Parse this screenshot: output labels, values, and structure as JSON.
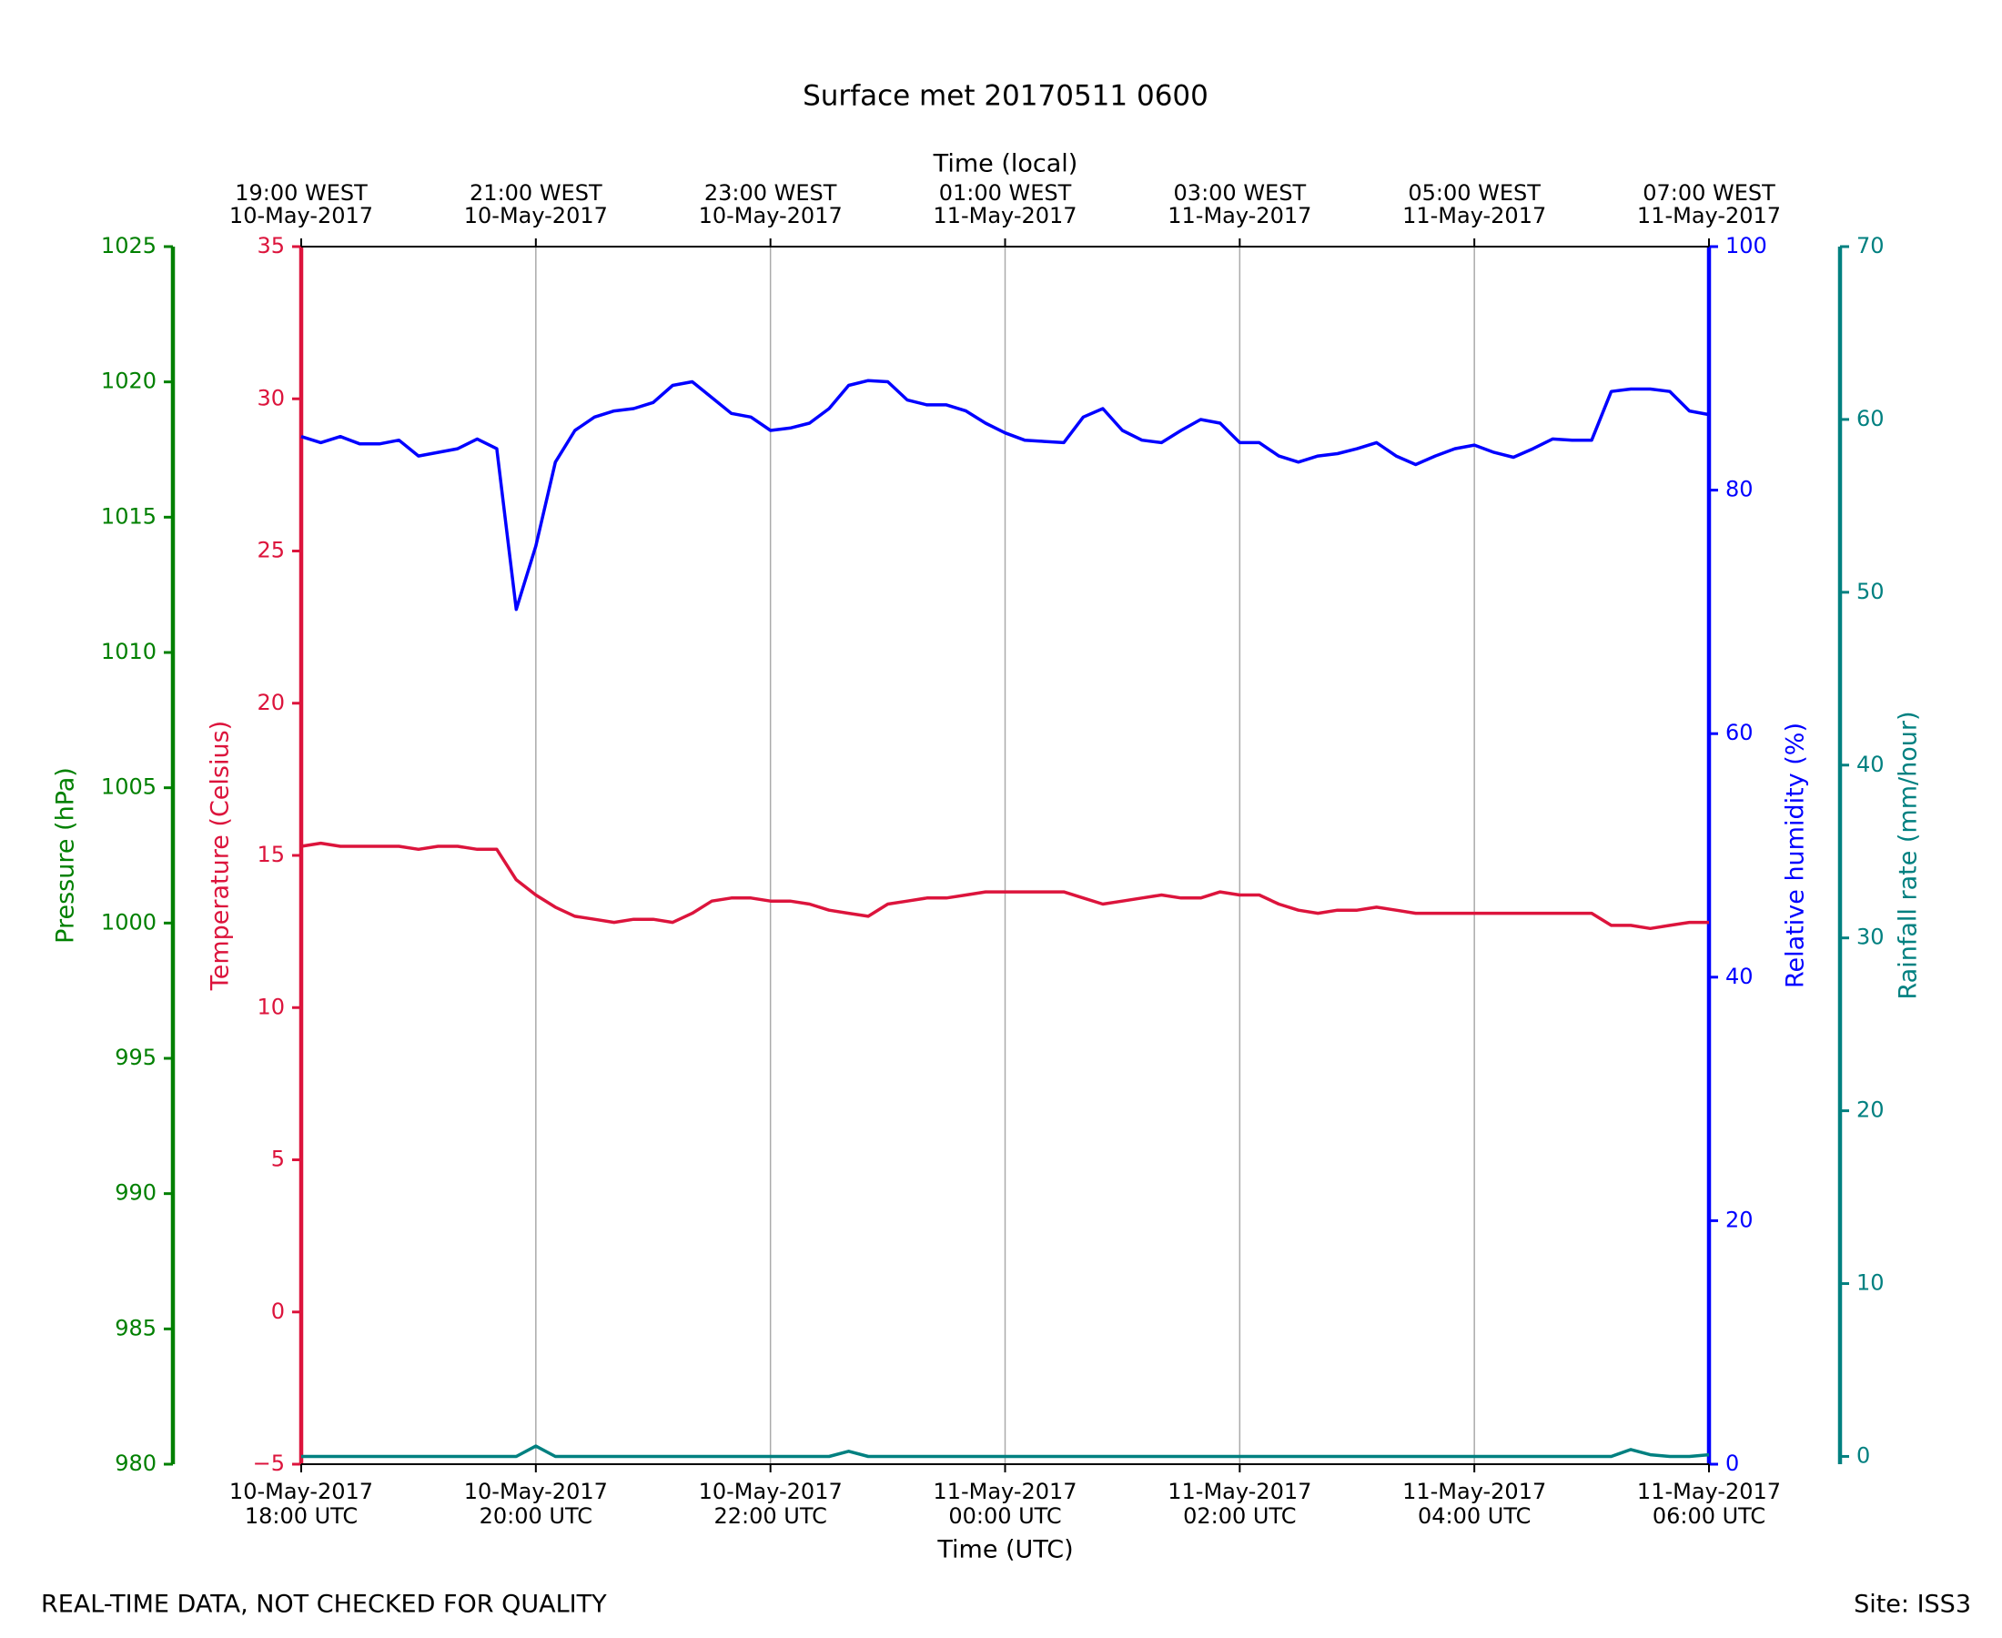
{
  "chart_data": {
    "type": "line",
    "title": "Surface met 20170511 0600",
    "xlabel": "Time (UTC)",
    "x2label": "Time (local)",
    "footnote": "REAL-TIME DATA, NOT CHECKED FOR QUALITY",
    "site": "Site: ISS3",
    "xlim": [
      "2017-05-10T18:00Z",
      "2017-05-11T06:00Z"
    ],
    "xticks": [
      {
        "value": "2017-05-10T18:00Z",
        "label": [
          "10-May-2017",
          "18:00 UTC"
        ]
      },
      {
        "value": "2017-05-10T20:00Z",
        "label": [
          "10-May-2017",
          "20:00 UTC"
        ]
      },
      {
        "value": "2017-05-10T22:00Z",
        "label": [
          "10-May-2017",
          "22:00 UTC"
        ]
      },
      {
        "value": "2017-05-11T00:00Z",
        "label": [
          "11-May-2017",
          "00:00 UTC"
        ]
      },
      {
        "value": "2017-05-11T02:00Z",
        "label": [
          "11-May-2017",
          "02:00 UTC"
        ]
      },
      {
        "value": "2017-05-11T04:00Z",
        "label": [
          "11-May-2017",
          "04:00 UTC"
        ]
      },
      {
        "value": "2017-05-11T06:00Z",
        "label": [
          "11-May-2017",
          "06:00 UTC"
        ]
      }
    ],
    "x2ticks": [
      {
        "value": "2017-05-10T18:00Z",
        "label": [
          "19:00 WEST",
          "10-May-2017"
        ]
      },
      {
        "value": "2017-05-10T20:00Z",
        "label": [
          "21:00 WEST",
          "10-May-2017"
        ]
      },
      {
        "value": "2017-05-10T22:00Z",
        "label": [
          "23:00 WEST",
          "10-May-2017"
        ]
      },
      {
        "value": "2017-05-11T00:00Z",
        "label": [
          "01:00 WEST",
          "11-May-2017"
        ]
      },
      {
        "value": "2017-05-11T02:00Z",
        "label": [
          "03:00 WEST",
          "11-May-2017"
        ]
      },
      {
        "value": "2017-05-11T04:00Z",
        "label": [
          "05:00 WEST",
          "11-May-2017"
        ]
      },
      {
        "value": "2017-05-11T06:00Z",
        "label": [
          "07:00 WEST",
          "11-May-2017"
        ]
      }
    ],
    "grid": true,
    "ylabel": "Temperature (Celsius)",
    "ycolor": "#dc143c",
    "ylim": [
      -5,
      35
    ],
    "yticks": [
      {
        "value": -5,
        "label": "−5"
      },
      0,
      5,
      10,
      15,
      20,
      25,
      30,
      35
    ],
    "y2label": "Relative humidity (%)",
    "y2color": "#0000ff",
    "y2lim": [
      0,
      100
    ],
    "y2ticks": [
      0,
      20,
      40,
      60,
      80,
      100
    ],
    "y3label": "Pressure (hPa)",
    "y3color": "#008000",
    "y3lim": [
      980,
      1025
    ],
    "y3ticks": [
      980,
      985,
      990,
      995,
      1000,
      1005,
      1010,
      1015,
      1020,
      1025
    ],
    "y4label": "Rainfall rate (mm/hour)",
    "y4color": "#008080",
    "y4lim": [
      -0.45,
      70
    ],
    "y4ticks": [
      0,
      10,
      20,
      30,
      40,
      50,
      60,
      70
    ],
    "x": [
      "2017-05-10T18:00Z",
      "2017-05-10T18:10Z",
      "2017-05-10T18:20Z",
      "2017-05-10T18:30Z",
      "2017-05-10T18:40Z",
      "2017-05-10T18:50Z",
      "2017-05-10T19:00Z",
      "2017-05-10T19:10Z",
      "2017-05-10T19:20Z",
      "2017-05-10T19:30Z",
      "2017-05-10T19:40Z",
      "2017-05-10T19:50Z",
      "2017-05-10T20:00Z",
      "2017-05-10T20:10Z",
      "2017-05-10T20:20Z",
      "2017-05-10T20:30Z",
      "2017-05-10T20:40Z",
      "2017-05-10T20:50Z",
      "2017-05-10T21:00Z",
      "2017-05-10T21:10Z",
      "2017-05-10T21:20Z",
      "2017-05-10T21:30Z",
      "2017-05-10T21:40Z",
      "2017-05-10T21:50Z",
      "2017-05-10T22:00Z",
      "2017-05-10T22:10Z",
      "2017-05-10T22:20Z",
      "2017-05-10T22:30Z",
      "2017-05-10T22:40Z",
      "2017-05-10T22:50Z",
      "2017-05-10T23:00Z",
      "2017-05-10T23:10Z",
      "2017-05-10T23:20Z",
      "2017-05-10T23:30Z",
      "2017-05-10T23:40Z",
      "2017-05-10T23:50Z",
      "2017-05-11T00:00Z",
      "2017-05-11T00:10Z",
      "2017-05-11T00:20Z",
      "2017-05-11T00:30Z",
      "2017-05-11T00:40Z",
      "2017-05-11T00:50Z",
      "2017-05-11T01:00Z",
      "2017-05-11T01:10Z",
      "2017-05-11T01:20Z",
      "2017-05-11T01:30Z",
      "2017-05-11T01:40Z",
      "2017-05-11T01:50Z",
      "2017-05-11T02:00Z",
      "2017-05-11T02:10Z",
      "2017-05-11T02:20Z",
      "2017-05-11T02:30Z",
      "2017-05-11T02:40Z",
      "2017-05-11T02:50Z",
      "2017-05-11T03:00Z",
      "2017-05-11T03:10Z",
      "2017-05-11T03:20Z",
      "2017-05-11T03:30Z",
      "2017-05-11T03:40Z",
      "2017-05-11T03:50Z",
      "2017-05-11T04:00Z",
      "2017-05-11T04:10Z",
      "2017-05-11T04:20Z",
      "2017-05-11T04:30Z",
      "2017-05-11T04:40Z",
      "2017-05-11T04:50Z",
      "2017-05-11T05:00Z",
      "2017-05-11T05:10Z",
      "2017-05-11T05:20Z",
      "2017-05-11T05:30Z",
      "2017-05-11T05:40Z",
      "2017-05-11T05:50Z",
      "2017-05-11T06:00Z"
    ],
    "series": [
      {
        "name": "Relative humidity",
        "axis": "y2",
        "color": "#0000ff",
        "values": [
          84.4,
          83.9,
          84.4,
          83.8,
          83.8,
          84.1,
          82.8,
          83.1,
          83.4,
          84.2,
          83.4,
          70.2,
          75.4,
          82.3,
          84.9,
          86.0,
          86.5,
          86.7,
          87.2,
          88.6,
          88.9,
          87.6,
          86.3,
          86.0,
          84.9,
          85.1,
          85.5,
          86.7,
          88.6,
          89.0,
          88.9,
          87.4,
          87.0,
          87.0,
          86.5,
          85.5,
          84.7,
          84.1,
          84.0,
          83.9,
          86.0,
          86.7,
          84.9,
          84.1,
          83.9,
          84.9,
          85.8,
          85.5,
          83.9,
          83.9,
          82.8,
          82.3,
          82.8,
          83.0,
          83.4,
          83.9,
          82.8,
          82.1,
          82.8,
          83.4,
          83.7,
          83.1,
          82.7,
          83.4,
          84.2,
          84.1,
          84.1,
          88.1,
          88.3,
          88.3,
          88.1,
          86.5,
          86.2
        ]
      },
      {
        "name": "Temperature",
        "axis": "y",
        "color": "#dc143c",
        "values": [
          15.3,
          15.4,
          15.3,
          15.3,
          15.3,
          15.3,
          15.2,
          15.3,
          15.3,
          15.2,
          15.2,
          14.2,
          13.7,
          13.3,
          13.0,
          12.9,
          12.8,
          12.9,
          12.9,
          12.8,
          13.1,
          13.5,
          13.6,
          13.6,
          13.5,
          13.5,
          13.4,
          13.2,
          13.1,
          13.0,
          13.4,
          13.5,
          13.6,
          13.6,
          13.7,
          13.8,
          13.8,
          13.8,
          13.8,
          13.8,
          13.6,
          13.4,
          13.5,
          13.6,
          13.7,
          13.6,
          13.6,
          13.8,
          13.7,
          13.7,
          13.4,
          13.2,
          13.1,
          13.2,
          13.2,
          13.3,
          13.2,
          13.1,
          13.1,
          13.1,
          13.1,
          13.1,
          13.1,
          13.1,
          13.1,
          13.1,
          13.1,
          12.7,
          12.7,
          12.6,
          12.7,
          12.8,
          12.8
        ]
      },
      {
        "name": "Rainfall rate",
        "axis": "y4",
        "color": "#008080",
        "values": [
          0,
          0,
          0,
          0,
          0,
          0,
          0,
          0,
          0,
          0,
          0,
          0,
          0.6,
          0,
          0,
          0,
          0,
          0,
          0,
          0,
          0,
          0,
          0,
          0,
          0,
          0,
          0,
          0,
          0.3,
          0,
          0,
          0,
          0,
          0,
          0,
          0,
          0,
          0,
          0,
          0,
          0,
          0,
          0,
          0,
          0,
          0,
          0,
          0,
          0,
          0,
          0,
          0,
          0,
          0,
          0,
          0,
          0,
          0,
          0,
          0,
          0,
          0,
          0,
          0,
          0,
          0,
          0,
          0,
          0.4,
          0.1,
          0,
          0,
          0.1
        ]
      }
    ]
  }
}
